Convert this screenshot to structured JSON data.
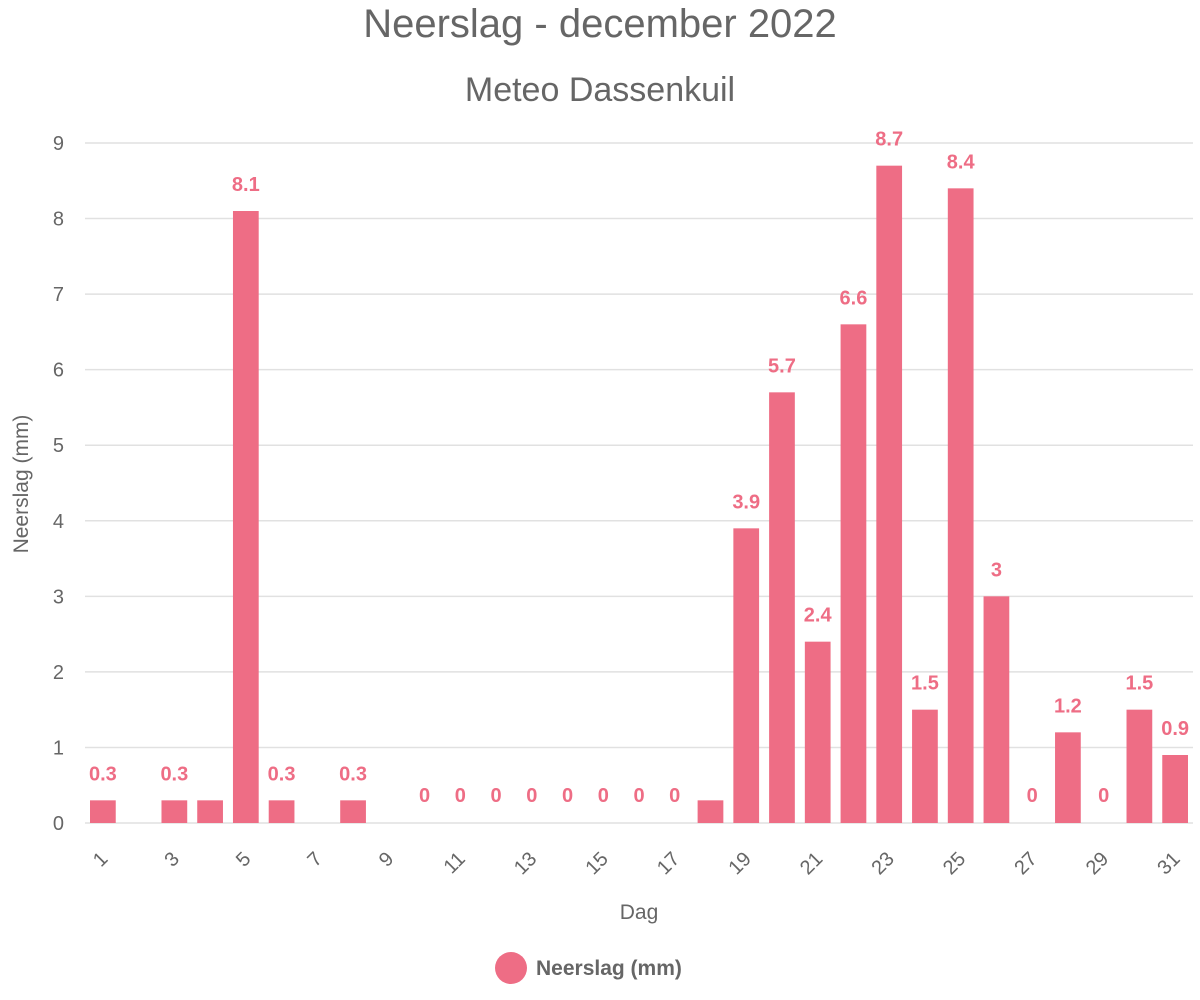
{
  "chart_data": {
    "type": "bar",
    "title": "Neerslag - december 2022",
    "subtitle": "Meteo Dassenkuil",
    "xlabel": "Dag",
    "ylabel": "Neerslag (mm)",
    "ylim": [
      0,
      9
    ],
    "y_ticks": [
      "0",
      "1",
      "2",
      "3",
      "4",
      "5",
      "6",
      "7",
      "8",
      "9"
    ],
    "categories": [
      "1",
      "2",
      "3",
      "4",
      "5",
      "6",
      "7",
      "8",
      "9",
      "10",
      "11",
      "12",
      "13",
      "14",
      "15",
      "16",
      "17",
      "18",
      "19",
      "20",
      "21",
      "22",
      "23",
      "24",
      "25",
      "26",
      "27",
      "28",
      "29",
      "30",
      "31"
    ],
    "x_tick_labels": [
      "1",
      "3",
      "5",
      "7",
      "9",
      "11",
      "13",
      "15",
      "17",
      "19",
      "21",
      "23",
      "25",
      "27",
      "29",
      "31"
    ],
    "series": [
      {
        "name": "Neerslag (mm)",
        "color": "#ee6d85",
        "values": [
          0.3,
          0,
          0.3,
          0.3,
          8.1,
          0.3,
          0,
          0.3,
          0,
          0,
          0,
          0,
          0,
          0,
          0,
          0,
          0,
          0.3,
          3.9,
          5.7,
          2.4,
          6.6,
          8.7,
          1.5,
          8.4,
          3,
          0,
          1.2,
          0,
          1.5,
          0.9
        ],
        "data_labels": [
          "0.3",
          "",
          "0.3",
          "",
          "8.1",
          "0.3",
          "",
          "0.3",
          "",
          "0",
          "0",
          "0",
          "0",
          "0",
          "0",
          "0",
          "0",
          "",
          "3.9",
          "5.7",
          "2.4",
          "6.6",
          "8.7",
          "1.5",
          "8.4",
          "3",
          "0",
          "1.2",
          "0",
          "1.5",
          "0.9"
        ]
      }
    ],
    "legend": {
      "position": "bottom",
      "label": "Neerslag (mm)"
    },
    "grid": true
  }
}
